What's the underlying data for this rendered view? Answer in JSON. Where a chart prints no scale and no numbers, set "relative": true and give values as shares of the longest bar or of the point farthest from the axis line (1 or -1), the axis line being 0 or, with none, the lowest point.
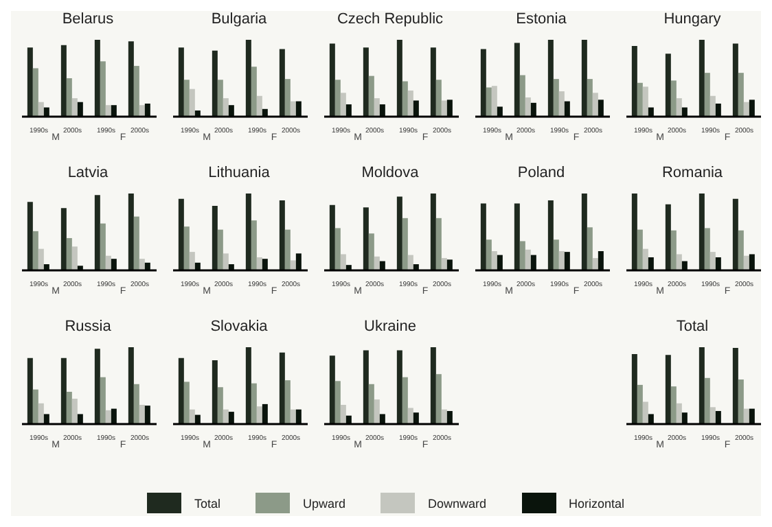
{
  "chart_data": [
    {
      "type": "bar",
      "title": "Belarus",
      "relative": true,
      "legend": "bottom",
      "categories": [
        "1990s",
        "2000s",
        "1990s",
        "2000s"
      ],
      "annotations": [
        "M",
        "F"
      ],
      "series": [
        {
          "name": "Total",
          "color": "#1f2a1f",
          "values": [
            0.9,
            0.93,
            1,
            0.98
          ]
        },
        {
          "name": "Upward",
          "color": "#8c9a88",
          "values": [
            0.63,
            0.5,
            0.72,
            0.66
          ]
        },
        {
          "name": "Downward",
          "color": "#c4c6bf",
          "values": [
            0.19,
            0.24,
            0.15,
            0.15
          ]
        },
        {
          "name": "Horizontal",
          "color": "#0a140c",
          "values": [
            0.12,
            0.19,
            0.15,
            0.17
          ]
        }
      ]
    },
    {
      "type": "bar",
      "title": "Bulgaria",
      "relative": true,
      "categories": [
        "1990s",
        "2000s",
        "1990s",
        "2000s"
      ],
      "annotations": [
        "M",
        "F"
      ],
      "series": [
        {
          "color": "#1f2a1f",
          "values": [
            0.9,
            0.86,
            1,
            0.88
          ]
        },
        {
          "color": "#8c9a88",
          "values": [
            0.48,
            0.48,
            0.65,
            0.49
          ]
        },
        {
          "color": "#c4c6bf",
          "values": [
            0.36,
            0.24,
            0.27,
            0.2
          ]
        },
        {
          "color": "#0a140c",
          "values": [
            0.08,
            0.15,
            0.1,
            0.2
          ]
        }
      ]
    },
    {
      "type": "bar",
      "title": "Czech Republic",
      "relative": true,
      "categories": [
        "1990s",
        "2000s",
        "1990s",
        "2000s"
      ],
      "annotations": [
        "M",
        "F"
      ],
      "series": [
        {
          "color": "#1f2a1f",
          "values": [
            0.95,
            0.9,
            1,
            0.9
          ]
        },
        {
          "color": "#8c9a88",
          "values": [
            0.48,
            0.53,
            0.46,
            0.48
          ]
        },
        {
          "color": "#c4c6bf",
          "values": [
            0.31,
            0.24,
            0.34,
            0.21
          ]
        },
        {
          "color": "#0a140c",
          "values": [
            0.16,
            0.16,
            0.21,
            0.22
          ]
        }
      ]
    },
    {
      "type": "bar",
      "title": "Estonia",
      "relative": true,
      "categories": [
        "1990s",
        "2000s",
        "1990s",
        "2000s"
      ],
      "annotations": [
        "M",
        "F"
      ],
      "series": [
        {
          "color": "#1f2a1f",
          "values": [
            0.88,
            0.96,
            1,
            1
          ]
        },
        {
          "color": "#8c9a88",
          "values": [
            0.38,
            0.54,
            0.49,
            0.49
          ]
        },
        {
          "color": "#c4c6bf",
          "values": [
            0.4,
            0.25,
            0.33,
            0.31
          ]
        },
        {
          "color": "#0a140c",
          "values": [
            0.13,
            0.18,
            0.2,
            0.22
          ]
        }
      ]
    },
    {
      "type": "bar",
      "title": "Hungary",
      "relative": true,
      "categories": [
        "1990s",
        "2000s",
        "1990s",
        "2000s"
      ],
      "annotations": [
        "M",
        "F"
      ],
      "series": [
        {
          "color": "#1f2a1f",
          "values": [
            0.92,
            0.82,
            1,
            0.95
          ]
        },
        {
          "color": "#8c9a88",
          "values": [
            0.44,
            0.47,
            0.57,
            0.57
          ]
        },
        {
          "color": "#c4c6bf",
          "values": [
            0.39,
            0.24,
            0.27,
            0.19
          ]
        },
        {
          "color": "#0a140c",
          "values": [
            0.12,
            0.12,
            0.17,
            0.22
          ]
        }
      ]
    },
    {
      "type": "bar",
      "title": "Latvia",
      "relative": true,
      "categories": [
        "1990s",
        "2000s",
        "1990s",
        "2000s"
      ],
      "annotations": [
        "M",
        "F"
      ],
      "series": [
        {
          "color": "#1f2a1f",
          "values": [
            0.89,
            0.81,
            0.98,
            1
          ]
        },
        {
          "color": "#8c9a88",
          "values": [
            0.51,
            0.42,
            0.61,
            0.7
          ]
        },
        {
          "color": "#c4c6bf",
          "values": [
            0.28,
            0.31,
            0.19,
            0.15
          ]
        },
        {
          "color": "#0a140c",
          "values": [
            0.08,
            0.06,
            0.15,
            0.1
          ]
        }
      ]
    },
    {
      "type": "bar",
      "title": "Lithuania",
      "relative": true,
      "categories": [
        "1990s",
        "2000s",
        "1990s",
        "2000s"
      ],
      "annotations": [
        "M",
        "F"
      ],
      "series": [
        {
          "color": "#1f2a1f",
          "values": [
            0.93,
            0.84,
            1,
            0.91
          ]
        },
        {
          "color": "#8c9a88",
          "values": [
            0.57,
            0.53,
            0.65,
            0.53
          ]
        },
        {
          "color": "#c4c6bf",
          "values": [
            0.24,
            0.22,
            0.17,
            0.13
          ]
        },
        {
          "color": "#0a140c",
          "values": [
            0.1,
            0.08,
            0.15,
            0.22
          ]
        }
      ]
    },
    {
      "type": "bar",
      "title": "Moldova",
      "relative": true,
      "categories": [
        "1990s",
        "2000s",
        "1990s",
        "2000s"
      ],
      "annotations": [
        "M",
        "F"
      ],
      "series": [
        {
          "color": "#1f2a1f",
          "values": [
            0.85,
            0.82,
            0.96,
            1
          ]
        },
        {
          "color": "#8c9a88",
          "values": [
            0.55,
            0.48,
            0.68,
            0.68
          ]
        },
        {
          "color": "#c4c6bf",
          "values": [
            0.21,
            0.18,
            0.2,
            0.16
          ]
        },
        {
          "color": "#0a140c",
          "values": [
            0.07,
            0.12,
            0.08,
            0.14
          ]
        }
      ]
    },
    {
      "type": "bar",
      "title": "Poland",
      "relative": true,
      "categories": [
        "1990s",
        "2000s",
        "1990s",
        "2000s"
      ],
      "annotations": [
        "M",
        "F"
      ],
      "series": [
        {
          "color": "#1f2a1f",
          "values": [
            0.87,
            0.87,
            0.91,
            1
          ]
        },
        {
          "color": "#8c9a88",
          "values": [
            0.4,
            0.38,
            0.4,
            0.56
          ]
        },
        {
          "color": "#c4c6bf",
          "values": [
            0.25,
            0.27,
            0.25,
            0.16
          ]
        },
        {
          "color": "#0a140c",
          "values": [
            0.2,
            0.2,
            0.24,
            0.25
          ]
        }
      ]
    },
    {
      "type": "bar",
      "title": "Romania",
      "relative": true,
      "categories": [
        "1990s",
        "2000s",
        "1990s",
        "2000s"
      ],
      "annotations": [
        "M",
        "F"
      ],
      "series": [
        {
          "color": "#1f2a1f",
          "values": [
            1,
            0.86,
            1,
            0.93
          ]
        },
        {
          "color": "#8c9a88",
          "values": [
            0.53,
            0.52,
            0.55,
            0.52
          ]
        },
        {
          "color": "#c4c6bf",
          "values": [
            0.28,
            0.21,
            0.24,
            0.19
          ]
        },
        {
          "color": "#0a140c",
          "values": [
            0.17,
            0.12,
            0.17,
            0.21
          ]
        }
      ]
    },
    {
      "type": "bar",
      "title": "Russia",
      "relative": true,
      "categories": [
        "1990s",
        "2000s",
        "1990s",
        "2000s"
      ],
      "annotations": [
        "M",
        "F"
      ],
      "series": [
        {
          "color": "#1f2a1f",
          "values": [
            0.86,
            0.86,
            0.98,
            1
          ]
        },
        {
          "color": "#8c9a88",
          "values": [
            0.45,
            0.42,
            0.61,
            0.52
          ]
        },
        {
          "color": "#c4c6bf",
          "values": [
            0.27,
            0.33,
            0.18,
            0.25
          ]
        },
        {
          "color": "#0a140c",
          "values": [
            0.13,
            0.13,
            0.2,
            0.24
          ]
        }
      ]
    },
    {
      "type": "bar",
      "title": "Slovakia",
      "relative": true,
      "categories": [
        "1990s",
        "2000s",
        "1990s",
        "2000s"
      ],
      "annotations": [
        "M",
        "F"
      ],
      "series": [
        {
          "color": "#1f2a1f",
          "values": [
            0.86,
            0.83,
            1,
            0.93
          ]
        },
        {
          "color": "#8c9a88",
          "values": [
            0.55,
            0.48,
            0.53,
            0.57
          ]
        },
        {
          "color": "#c4c6bf",
          "values": [
            0.19,
            0.19,
            0.23,
            0.19
          ]
        },
        {
          "color": "#0a140c",
          "values": [
            0.12,
            0.16,
            0.26,
            0.19
          ]
        }
      ]
    },
    {
      "type": "bar",
      "title": "Ukraine",
      "relative": true,
      "categories": [
        "1990s",
        "2000s",
        "1990s",
        "2000s"
      ],
      "annotations": [
        "M",
        "F"
      ],
      "series": [
        {
          "color": "#1f2a1f",
          "values": [
            0.89,
            0.96,
            0.96,
            1
          ]
        },
        {
          "color": "#8c9a88",
          "values": [
            0.56,
            0.52,
            0.61,
            0.65
          ]
        },
        {
          "color": "#c4c6bf",
          "values": [
            0.25,
            0.32,
            0.21,
            0.19
          ]
        },
        {
          "color": "#0a140c",
          "values": [
            0.11,
            0.13,
            0.15,
            0.17
          ]
        }
      ]
    },
    {
      "type": "bar",
      "title": "Total",
      "relative": true,
      "categories": [
        "1990s",
        "2000s",
        "1990s",
        "2000s"
      ],
      "annotations": [
        "M",
        "F"
      ],
      "series": [
        {
          "color": "#1f2a1f",
          "values": [
            0.91,
            0.9,
            1,
            0.99
          ]
        },
        {
          "color": "#8c9a88",
          "values": [
            0.51,
            0.49,
            0.6,
            0.58
          ]
        },
        {
          "color": "#c4c6bf",
          "values": [
            0.29,
            0.27,
            0.22,
            0.2
          ]
        },
        {
          "color": "#0a140c",
          "values": [
            0.13,
            0.15,
            0.17,
            0.2
          ]
        }
      ]
    }
  ]
}
